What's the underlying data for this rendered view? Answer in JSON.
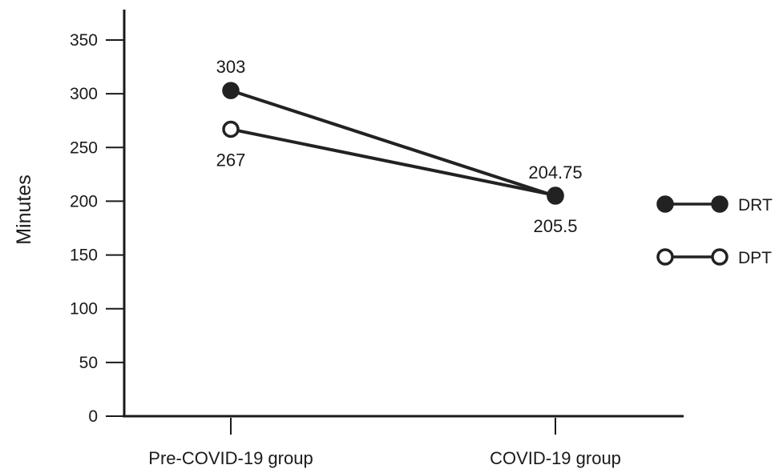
{
  "chart_data": {
    "type": "line",
    "title": "",
    "xlabel": "",
    "ylabel": "Minutes",
    "categories": [
      "Pre-COVID-19 group",
      "COVID-19 group"
    ],
    "ylim": [
      0,
      350
    ],
    "yticks": [
      0,
      50,
      100,
      150,
      200,
      250,
      300,
      350
    ],
    "grid": false,
    "legend_position": "right",
    "series": [
      {
        "name": "DRT",
        "values": [
          303,
          204.75
        ],
        "marker": "filled-circle",
        "labels": [
          "303",
          "204.75"
        ],
        "label_positions": [
          "above",
          "above"
        ]
      },
      {
        "name": "DPT",
        "values": [
          267,
          205.5
        ],
        "marker": "open-circle",
        "labels": [
          "267",
          "205.5"
        ],
        "label_positions": [
          "below",
          "below"
        ]
      }
    ],
    "colors": {
      "line": "#222222",
      "marker_fill": "#222222",
      "open_marker_fill": "#ffffff"
    }
  }
}
